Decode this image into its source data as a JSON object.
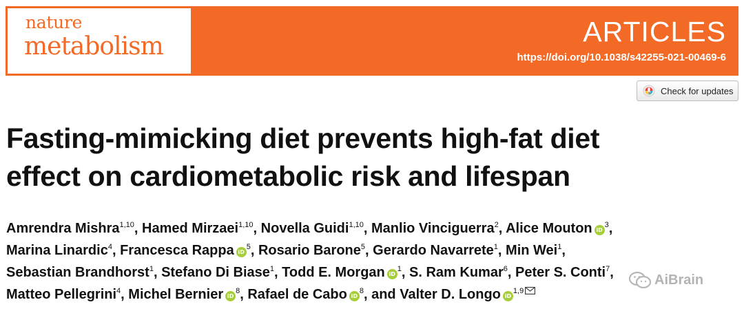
{
  "journal": {
    "logo_line1": "nature",
    "logo_line2": "metabolism",
    "section": "ARTICLES",
    "doi": "https://doi.org/10.1038/s42255-021-00469-6",
    "brand_color": "#f26a26"
  },
  "check_updates": {
    "label": "Check for updates",
    "icon": "crossmark-icon"
  },
  "title": {
    "line1": "Fasting-mimicking diet prevents high-fat diet",
    "line2": "effect on cardiometabolic risk and lifespan"
  },
  "authors": [
    {
      "name": "Amrendra Mishra",
      "aff": "1,10",
      "orcid": false
    },
    {
      "name": "Hamed Mirzaei",
      "aff": "1,10",
      "orcid": false
    },
    {
      "name": "Novella Guidi",
      "aff": "1,10",
      "orcid": false
    },
    {
      "name": "Manlio Vinciguerra",
      "aff": "2",
      "orcid": false
    },
    {
      "name": "Alice Mouton",
      "aff": "3",
      "orcid": true
    },
    {
      "name": "Marina Linardic",
      "aff": "4",
      "orcid": false
    },
    {
      "name": "Francesca Rappa",
      "aff": "5",
      "orcid": true
    },
    {
      "name": "Rosario Barone",
      "aff": "5",
      "orcid": false
    },
    {
      "name": "Gerardo Navarrete",
      "aff": "1",
      "orcid": false
    },
    {
      "name": "Min Wei",
      "aff": "1",
      "orcid": false
    },
    {
      "name": "Sebastian Brandhorst",
      "aff": "1",
      "orcid": false
    },
    {
      "name": "Stefano Di Biase",
      "aff": "1",
      "orcid": false
    },
    {
      "name": "Todd E. Morgan",
      "aff": "1",
      "orcid": true
    },
    {
      "name": "S. Ram Kumar",
      "aff": "6",
      "orcid": false
    },
    {
      "name": "Peter S. Conti",
      "aff": "7",
      "orcid": false
    },
    {
      "name": "Matteo Pellegrini",
      "aff": "4",
      "orcid": false
    },
    {
      "name": "Michel Bernier",
      "aff": "8",
      "orcid": true
    },
    {
      "name": "Rafael de Cabo",
      "aff": "8",
      "orcid": true
    },
    {
      "name": "Valter D. Longo",
      "aff": "1,9",
      "orcid": true
    }
  ],
  "separators": {
    "comma": ",",
    "and": "and"
  },
  "orcid_glyph": "iD",
  "watermark": {
    "text": "AiBrain",
    "icon": "wechat-icon"
  }
}
